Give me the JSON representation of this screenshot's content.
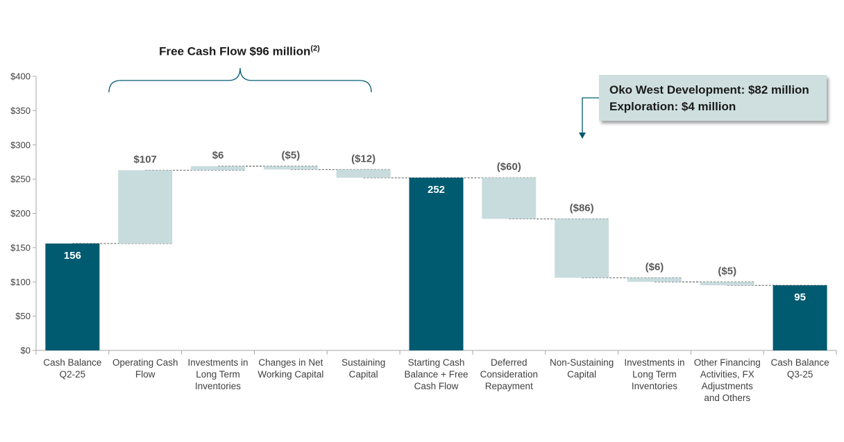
{
  "chart_data": {
    "type": "waterfall",
    "title": "",
    "ylabel": "",
    "xlabel": "",
    "ylim": [
      0,
      400
    ],
    "yticks": [
      "$0",
      "$50",
      "$100",
      "$150",
      "$200",
      "$250",
      "$300",
      "$350",
      "$400"
    ],
    "ytick_values": [
      0,
      50,
      100,
      150,
      200,
      250,
      300,
      350,
      400
    ],
    "categories": [
      [
        "Cash Balance",
        "Q2-25"
      ],
      [
        "Operating Cash",
        "Flow"
      ],
      [
        "Investments in",
        "Long Term",
        "Inventories"
      ],
      [
        "Changes in Net",
        "Working Capital"
      ],
      [
        "Sustaining",
        "Capital"
      ],
      [
        "Starting Cash",
        "Balance + Free",
        "Cash Flow"
      ],
      [
        "Deferred",
        "Consideration",
        "Repayment"
      ],
      [
        "Non-Sustaining",
        "Capital"
      ],
      [
        "Investments in",
        "Long Term",
        "Inventories"
      ],
      [
        "Other Financing",
        "Activities, FX",
        "Adjustments",
        "and Others"
      ],
      [
        "Cash Balance",
        "Q3-25"
      ]
    ],
    "bars": [
      {
        "kind": "total",
        "start": 0,
        "end": 156,
        "label": "156"
      },
      {
        "kind": "change",
        "start": 156,
        "end": 263,
        "label": "$107"
      },
      {
        "kind": "change",
        "start": 263,
        "end": 269,
        "label": "$6"
      },
      {
        "kind": "change",
        "start": 269,
        "end": 264,
        "label": "($5)"
      },
      {
        "kind": "change",
        "start": 264,
        "end": 252,
        "label": "($12)"
      },
      {
        "kind": "total",
        "start": 0,
        "end": 252,
        "label": "252"
      },
      {
        "kind": "change",
        "start": 252,
        "end": 192,
        "label": "($60)"
      },
      {
        "kind": "change",
        "start": 192,
        "end": 106,
        "label": "($86)"
      },
      {
        "kind": "change",
        "start": 106,
        "end": 100,
        "label": "($6)"
      },
      {
        "kind": "change",
        "start": 100,
        "end": 95,
        "label": "($5)"
      },
      {
        "kind": "total",
        "start": 0,
        "end": 95,
        "label": "95"
      }
    ],
    "colors": {
      "total": "#005a70",
      "change": "#c9dcdd",
      "axis": "#a6a6a6",
      "connector": "#404040"
    }
  },
  "annotations": {
    "fcf_title": "Free Cash Flow $96 million",
    "fcf_sup": "(2)",
    "callout_line1": "Oko West Development: $82 million",
    "callout_line2": "Exploration: $4 million"
  }
}
